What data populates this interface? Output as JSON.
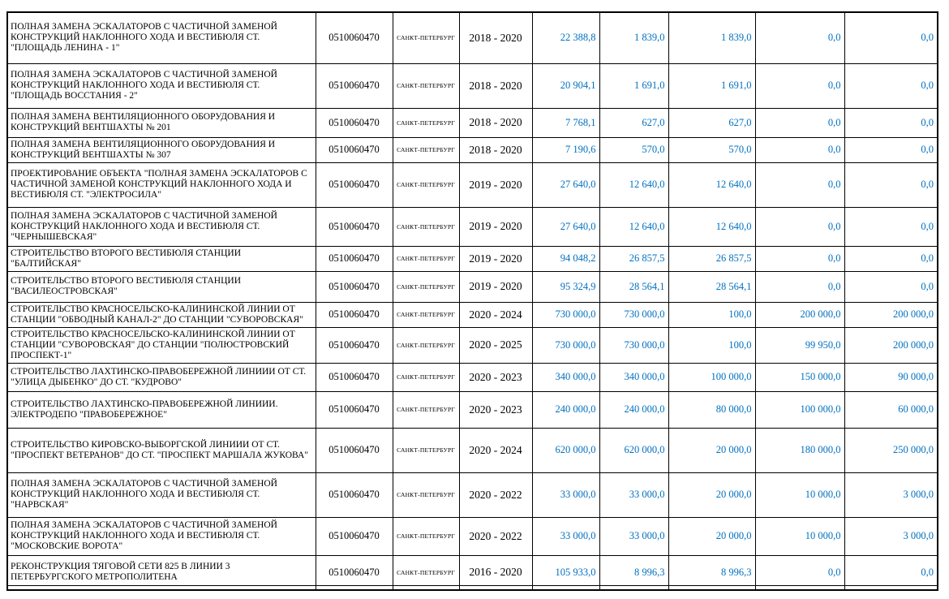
{
  "colors": {
    "value_text": "#0070C0",
    "border": "#000000",
    "background": "#FFFFFF"
  },
  "table": {
    "column_keys": [
      "name",
      "code",
      "city",
      "years",
      "value_1",
      "value_2",
      "value_3",
      "value_4",
      "value_5"
    ],
    "rows": [
      {
        "name": "ПОЛНАЯ ЗАМЕНА ЭСКАЛАТОРОВ С ЧАСТИЧНОЙ ЗАМЕНОЙ КОНСТРУКЦИЙ НАКЛОННОГО ХОДА И ВЕСТИБЮЛЯ СТ. \"ПЛОЩАДЬ ЛЕНИНА - 1\"",
        "code": "0510060470",
        "city": "САНКТ-ПЕТЕРБУРГ",
        "years": "2018 - 2020",
        "values": [
          "22 388,8",
          "1 839,0",
          "1 839,0",
          "0,0",
          "0,0"
        ]
      },
      {
        "name": "ПОЛНАЯ ЗАМЕНА ЭСКАЛАТОРОВ С ЧАСТИЧНОЙ ЗАМЕНОЙ КОНСТРУКЦИЙ НАКЛОННОГО ХОДА И ВЕСТИБЮЛЯ СТ. \"ПЛОЩАДЬ ВОССТАНИЯ - 2\"",
        "code": "0510060470",
        "city": "САНКТ-ПЕТЕРБУРГ",
        "years": "2018 - 2020",
        "values": [
          "20 904,1",
          "1 691,0",
          "1 691,0",
          "0,0",
          "0,0"
        ]
      },
      {
        "name": "ПОЛНАЯ ЗАМЕНА ВЕНТИЛЯЦИОННОГО ОБОРУДОВАНИЯ И КОНСТРУКЦИЙ ВЕНТШАХТЫ № 201",
        "code": "0510060470",
        "city": "САНКТ-ПЕТЕРБУРГ",
        "years": "2018 - 2020",
        "values": [
          "7 768,1",
          "627,0",
          "627,0",
          "0,0",
          "0,0"
        ]
      },
      {
        "name": "ПОЛНАЯ ЗАМЕНА ВЕНТИЛЯЦИОННОГО ОБОРУДОВАНИЯ И КОНСТРУКЦИЙ ВЕНТШАХТЫ № 307",
        "code": "0510060470",
        "city": "САНКТ-ПЕТЕРБУРГ",
        "years": "2018 - 2020",
        "values": [
          "7 190,6",
          "570,0",
          "570,0",
          "0,0",
          "0,0"
        ]
      },
      {
        "name": "ПРОЕКТИРОВАНИЕ ОБЪЕКТА \"ПОЛНАЯ ЗАМЕНА ЭСКАЛАТОРОВ С ЧАСТИЧНОЙ ЗАМЕНОЙ КОНСТРУКЦИЙ НАКЛОННОГО ХОДА И ВЕСТИБЮЛЯ СТ. \"ЭЛЕКТРОСИЛА\"",
        "code": "0510060470",
        "city": "САНКТ-ПЕТЕРБУРГ",
        "years": "2019 - 2020",
        "values": [
          "27 640,0",
          "12 640,0",
          "12 640,0",
          "0,0",
          "0,0"
        ]
      },
      {
        "name": "ПОЛНАЯ ЗАМЕНА ЭСКАЛАТОРОВ С ЧАСТИЧНОЙ ЗАМЕНОЙ КОНСТРУКЦИЙ НАКЛОННОГО ХОДА И ВЕСТИБЮЛЯ СТ. \"ЧЕРНЫШЕВСКАЯ\"",
        "code": "0510060470",
        "city": "САНКТ-ПЕТЕРБУРГ",
        "years": "2019 - 2020",
        "values": [
          "27 640,0",
          "12 640,0",
          "12 640,0",
          "0,0",
          "0,0"
        ]
      },
      {
        "name": "СТРОИТЕЛЬСТВО ВТОРОГО ВЕСТИБЮЛЯ СТАНЦИИ \"БАЛТИЙСКАЯ\"",
        "code": "0510060470",
        "city": "САНКТ-ПЕТЕРБУРГ",
        "years": "2019 - 2020",
        "values": [
          "94 048,2",
          "26 857,5",
          "26 857,5",
          "0,0",
          "0,0"
        ]
      },
      {
        "name": "СТРОИТЕЛЬСТВО ВТОРОГО ВЕСТИБЮЛЯ СТАНЦИИ \"ВАСИЛЕОСТРОВСКАЯ\"",
        "code": "0510060470",
        "city": "САНКТ-ПЕТЕРБУРГ",
        "years": "2019 - 2020",
        "values": [
          "95 324,9",
          "28 564,1",
          "28 564,1",
          "0,0",
          "0,0"
        ]
      },
      {
        "name": "СТРОИТЕЛЬСТВО КРАСНОСЕЛЬСКО-КАЛИНИНСКОЙ ЛИНИИ ОТ СТАНЦИИ \"ОБВОДНЫЙ КАНАЛ-2\" ДО СТАНЦИИ \"СУВОРОВСКАЯ\"",
        "code": "0510060470",
        "city": "САНКТ-ПЕТЕРБУРГ",
        "years": "2020 - 2024",
        "values": [
          "730 000,0",
          "730 000,0",
          "100,0",
          "200 000,0",
          "200 000,0"
        ]
      },
      {
        "name": "СТРОИТЕЛЬСТВО КРАСНОСЕЛЬСКО-КАЛИНИНСКОЙ ЛИНИИ ОТ СТАНЦИИ \"СУВОРОВСКАЯ\" ДО СТАНЦИИ \"ПОЛЮСТРОВСКИЙ ПРОСПЕКТ-1\"",
        "code": "0510060470",
        "city": "САНКТ-ПЕТЕРБУРГ",
        "years": "2020 - 2025",
        "values": [
          "730 000,0",
          "730 000,0",
          "100,0",
          "99 950,0",
          "200 000,0"
        ]
      },
      {
        "name": "СТРОИТЕЛЬСТВО ЛАХТИНСКО-ПРАВОБЕРЕЖНОЙ ЛИНИИИ ОТ СТ. \"УЛИЦА ДЫБЕНКО\" ДО СТ. \"КУДРОВО\"",
        "code": "0510060470",
        "city": "САНКТ-ПЕТЕРБУРГ",
        "years": "2020 - 2023",
        "values": [
          "340 000,0",
          "340 000,0",
          "100 000,0",
          "150 000,0",
          "90 000,0"
        ]
      },
      {
        "name": "СТРОИТЕЛЬСТВО ЛАХТИНСКО-ПРАВОБЕРЕЖНОЙ ЛИНИИИ. ЭЛЕКТРОДЕПО \"ПРАВОБЕРЕЖНОЕ\"",
        "code": "0510060470",
        "city": "САНКТ-ПЕТЕРБУРГ",
        "years": "2020 - 2023",
        "values": [
          "240 000,0",
          "240 000,0",
          "80 000,0",
          "100 000,0",
          "60 000,0"
        ]
      },
      {
        "name": "СТРОИТЕЛЬСТВО КИРОВСКО-ВЫБОРГСКОЙ ЛИНИИИ ОТ СТ. \"ПРОСПЕКТ ВЕТЕРАНОВ\" ДО СТ. \"ПРОСПЕКТ МАРШАЛА ЖУКОВА\"",
        "code": "0510060470",
        "city": "САНКТ-ПЕТЕРБУРГ",
        "years": "2020 - 2024",
        "values": [
          "620 000,0",
          "620 000,0",
          "20 000,0",
          "180 000,0",
          "250 000,0"
        ]
      },
      {
        "name": "ПОЛНАЯ ЗАМЕНА ЭСКАЛАТОРОВ С ЧАСТИЧНОЙ ЗАМЕНОЙ КОНСТРУКЦИЙ НАКЛОННОГО ХОДА И ВЕСТИБЮЛЯ СТ. \"НАРВСКАЯ\"",
        "code": "0510060470",
        "city": "САНКТ-ПЕТЕРБУРГ",
        "years": "2020 - 2022",
        "values": [
          "33 000,0",
          "33 000,0",
          "20 000,0",
          "10 000,0",
          "3 000,0"
        ]
      },
      {
        "name": "ПОЛНАЯ ЗАМЕНА ЭСКАЛАТОРОВ С ЧАСТИЧНОЙ ЗАМЕНОЙ КОНСТРУКЦИЙ НАКЛОННОГО ХОДА И ВЕСТИБЮЛЯ СТ. \"МОСКОВСКИЕ ВОРОТА\"",
        "code": "0510060470",
        "city": "САНКТ-ПЕТЕРБУРГ",
        "years": "2020 - 2022",
        "values": [
          "33 000,0",
          "33 000,0",
          "20 000,0",
          "10 000,0",
          "3 000,0"
        ]
      },
      {
        "name": "РЕКОНСТРУКЦИЯ ТЯГОВОЙ СЕТИ 825 В ЛИНИИ 3 ПЕТЕРБУРГСКОГО МЕТРОПОЛИТЕНА",
        "code": "0510060470",
        "city": "САНКТ-ПЕТЕРБУРГ",
        "years": "2016 - 2020",
        "values": [
          "105 933,0",
          "8 996,3",
          "8 996,3",
          "0,0",
          "0,0"
        ]
      }
    ]
  }
}
